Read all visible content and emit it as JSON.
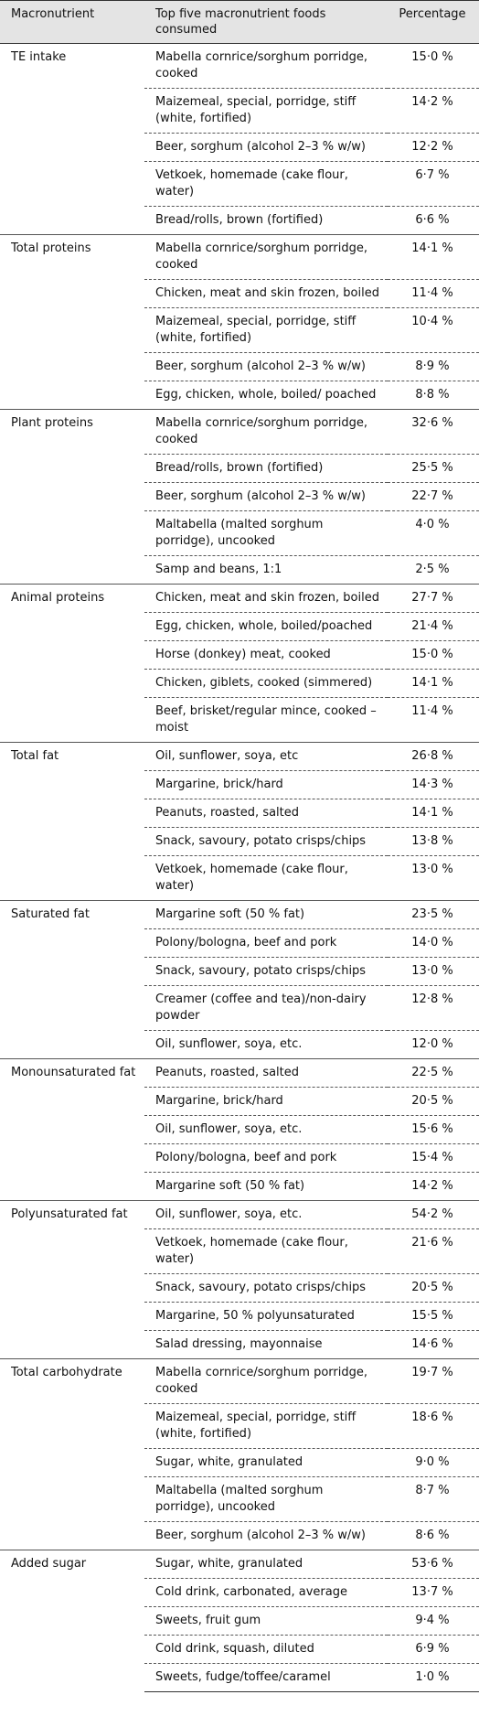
{
  "table": {
    "header": [
      "Macronutrient",
      "Top five macronutrient foods consumed",
      "Percentage"
    ],
    "groups": [
      {
        "name": "TE intake",
        "rows": [
          [
            "Mabella cornrice/sorghum porridge, cooked",
            "15·0 %"
          ],
          [
            "Maizemeal, special, porridge, stiff (white, fortified)",
            "14·2 %"
          ],
          [
            "Beer, sorghum (alcohol 2–3 % w/w)",
            "12·2 %"
          ],
          [
            "Vetkoek, homemade (cake flour, water)",
            "6·7 %"
          ],
          [
            "Bread/rolls, brown (fortified)",
            "6·6 %"
          ]
        ]
      },
      {
        "name": "Total proteins",
        "rows": [
          [
            "Mabella cornrice/sorghum porridge, cooked",
            "14·1 %"
          ],
          [
            "Chicken, meat and skin frozen, boiled",
            "11·4 %"
          ],
          [
            "Maizemeal, special, porridge, stiff (white, fortified)",
            "10·4 %"
          ],
          [
            "Beer, sorghum (alcohol 2–3 % w/w)",
            "8·9 %"
          ],
          [
            "Egg, chicken, whole, boiled/ poached",
            "8·8 %"
          ]
        ]
      },
      {
        "name": "Plant proteins",
        "rows": [
          [
            "Mabella cornrice/sorghum porridge, cooked",
            "32·6 %"
          ],
          [
            "Bread/rolls, brown (fortified)",
            "25·5 %"
          ],
          [
            "Beer, sorghum (alcohol 2–3 % w/w)",
            "22·7 %"
          ],
          [
            "Maltabella (malted sorghum porridge), uncooked",
            "4·0 %"
          ],
          [
            "Samp and beans, 1:1",
            "2·5 %"
          ]
        ]
      },
      {
        "name": "Animal proteins",
        "rows": [
          [
            "Chicken, meat and skin frozen, boiled",
            "27·7 %"
          ],
          [
            "Egg, chicken, whole, boiled/poached",
            "21·4 %"
          ],
          [
            "Horse (donkey) meat, cooked",
            "15·0 %"
          ],
          [
            "Chicken, giblets, cooked (simmered)",
            "14·1 %"
          ],
          [
            "Beef, brisket/regular mince, cooked – moist",
            "11·4 %"
          ]
        ]
      },
      {
        "name": "Total fat",
        "rows": [
          [
            "Oil, sunflower, soya, etc",
            "26·8 %"
          ],
          [
            "Margarine, brick/hard",
            "14·3 %"
          ],
          [
            "Peanuts, roasted, salted",
            "14·1 %"
          ],
          [
            "Snack, savoury, potato crisps/chips",
            "13·8 %"
          ],
          [
            "Vetkoek, homemade (cake flour, water)",
            "13·0 %"
          ]
        ]
      },
      {
        "name": "Saturated fat",
        "rows": [
          [
            "Margarine soft (50 % fat)",
            "23·5 %"
          ],
          [
            "Polony/bologna, beef and pork",
            "14·0 %"
          ],
          [
            "Snack, savoury, potato crisps/chips",
            "13·0 %"
          ],
          [
            "Creamer (coffee and tea)/non-dairy powder",
            "12·8 %"
          ],
          [
            "Oil, sunflower, soya, etc.",
            "12·0 %"
          ]
        ]
      },
      {
        "name": "Monounsaturated fat",
        "rows": [
          [
            "Peanuts, roasted, salted",
            "22·5 %"
          ],
          [
            "Margarine, brick/hard",
            "20·5 %"
          ],
          [
            "Oil, sunflower, soya, etc.",
            "15·6 %"
          ],
          [
            "Polony/bologna, beef and pork",
            "15·4 %"
          ],
          [
            "Margarine soft (50 % fat)",
            "14·2 %"
          ]
        ]
      },
      {
        "name": "Polyunsaturated fat",
        "rows": [
          [
            "Oil, sunflower, soya, etc.",
            "54·2 %"
          ],
          [
            "Vetkoek, homemade (cake flour, water)",
            "21·6 %"
          ],
          [
            "Snack, savoury, potato crisps/chips",
            "20·5 %"
          ],
          [
            "Margarine, 50 % polyunsaturated",
            "15·5 %"
          ],
          [
            "Salad dressing, mayonnaise",
            "14·6 %"
          ]
        ]
      },
      {
        "name": "Total carbohydrate",
        "rows": [
          [
            "Mabella cornrice/sorghum porridge, cooked",
            "19·7 %"
          ],
          [
            "Maizemeal, special, porridge, stiff (white, fortified)",
            "18·6 %"
          ],
          [
            "Sugar, white, granulated",
            "9·0 %"
          ],
          [
            "Maltabella (malted sorghum porridge), uncooked",
            "8·7 %"
          ],
          [
            "Beer, sorghum (alcohol 2–3 % w/w)",
            "8·6 %"
          ]
        ]
      },
      {
        "name": "Added sugar",
        "rows": [
          [
            "Sugar, white, granulated",
            "53·6 %"
          ],
          [
            "Cold drink, carbonated, average",
            "13·7 %"
          ],
          [
            "Sweets, fruit gum",
            "9·4 %"
          ],
          [
            "Cold drink, squash, diluted",
            "6·9 %"
          ],
          [
            "Sweets, fudge/toffee/caramel",
            "1·0 %"
          ]
        ]
      }
    ]
  }
}
